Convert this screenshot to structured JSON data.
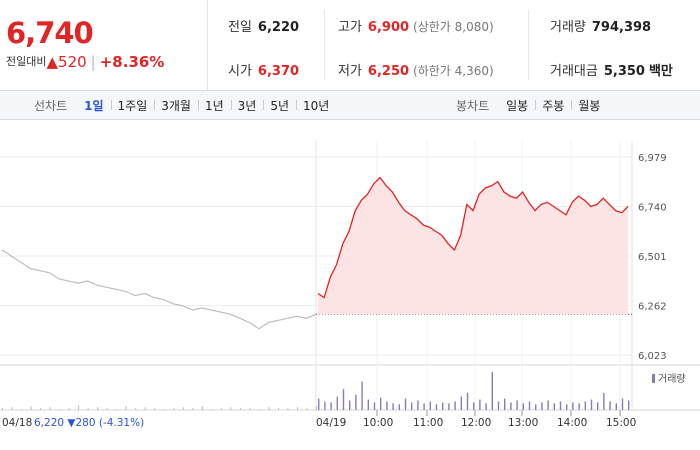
{
  "quote": {
    "price": "6,740",
    "change_label": "전일대비",
    "change_arrow": "▲",
    "change_value": "520",
    "change_pct": "+8.36%"
  },
  "stats": {
    "prev_close_label": "전일",
    "prev_close": "6,220",
    "open_label": "시가",
    "open": "6,370",
    "high_label": "고가",
    "high": "6,900",
    "upper_limit": "(상한가 8,080)",
    "low_label": "저가",
    "low": "6,250",
    "lower_limit": "(하한가 4,360)",
    "volume_label": "거래량",
    "volume": "794,398",
    "amount_label": "거래대금",
    "amount": "5,350",
    "amount_unit": "백만"
  },
  "tabs": {
    "line_label": "선차트",
    "line_tabs": [
      "1일",
      "1주일",
      "3개월",
      "1년",
      "3년",
      "5년",
      "10년"
    ],
    "line_active": "1일",
    "candle_label": "봉차트",
    "candle_tabs": [
      "일봉",
      "주봉",
      "월봉"
    ]
  },
  "colors": {
    "up": "#e12424",
    "down": "#2a55d6",
    "prev_line": "#bdbdbd",
    "fill": "#fde4e4",
    "volume": "#8a7ab8"
  },
  "chart_data": {
    "type": "line",
    "y_ticks": [
      "6,979",
      "6,740",
      "6,501",
      "6,262",
      "6,023"
    ],
    "ylim": [
      6023,
      6979
    ],
    "prev_close_value": 6220,
    "grid": true,
    "prev_day": {
      "date_label": "04/18",
      "close_text": "6,220",
      "change_arrow": "▼",
      "change_text": "280 (-4.31%)",
      "values": [
        6530,
        6500,
        6470,
        6440,
        6430,
        6420,
        6390,
        6380,
        6370,
        6380,
        6360,
        6350,
        6340,
        6330,
        6310,
        6320,
        6300,
        6290,
        6270,
        6260,
        6240,
        6250,
        6240,
        6230,
        6220,
        6200,
        6180,
        6150,
        6180,
        6190,
        6200,
        6210,
        6200,
        6220
      ]
    },
    "today": {
      "date_label": "04/19",
      "time_labels": [
        "10:00",
        "11:00",
        "12:00",
        "13:00",
        "14:00",
        "15:00"
      ],
      "values": [
        6320,
        6300,
        6400,
        6460,
        6560,
        6620,
        6720,
        6770,
        6800,
        6850,
        6880,
        6840,
        6810,
        6760,
        6720,
        6700,
        6680,
        6650,
        6640,
        6620,
        6600,
        6560,
        6530,
        6600,
        6750,
        6720,
        6800,
        6830,
        6840,
        6860,
        6810,
        6790,
        6780,
        6810,
        6760,
        6720,
        6750,
        6760,
        6740,
        6720,
        6700,
        6760,
        6790,
        6770,
        6740,
        6750,
        6780,
        6750,
        6720,
        6710,
        6740
      ]
    },
    "volume_label": "거래량",
    "volume": {
      "prev": [
        2,
        3,
        1,
        4,
        2,
        3,
        1,
        2,
        5,
        2,
        3,
        2,
        1,
        4,
        2,
        3,
        2,
        1,
        2,
        3,
        2,
        4,
        1,
        2,
        3,
        2,
        2,
        1,
        3,
        2,
        2,
        3,
        2,
        4
      ],
      "today": [
        12,
        9,
        8,
        14,
        22,
        10,
        16,
        30,
        11,
        8,
        13,
        9,
        7,
        6,
        12,
        8,
        10,
        7,
        9,
        6,
        8,
        7,
        9,
        14,
        18,
        8,
        11,
        7,
        40,
        9,
        12,
        8,
        10,
        7,
        9,
        6,
        8,
        10,
        7,
        9,
        6,
        8,
        7,
        9,
        11,
        8,
        18,
        9,
        7,
        12,
        10
      ]
    }
  }
}
